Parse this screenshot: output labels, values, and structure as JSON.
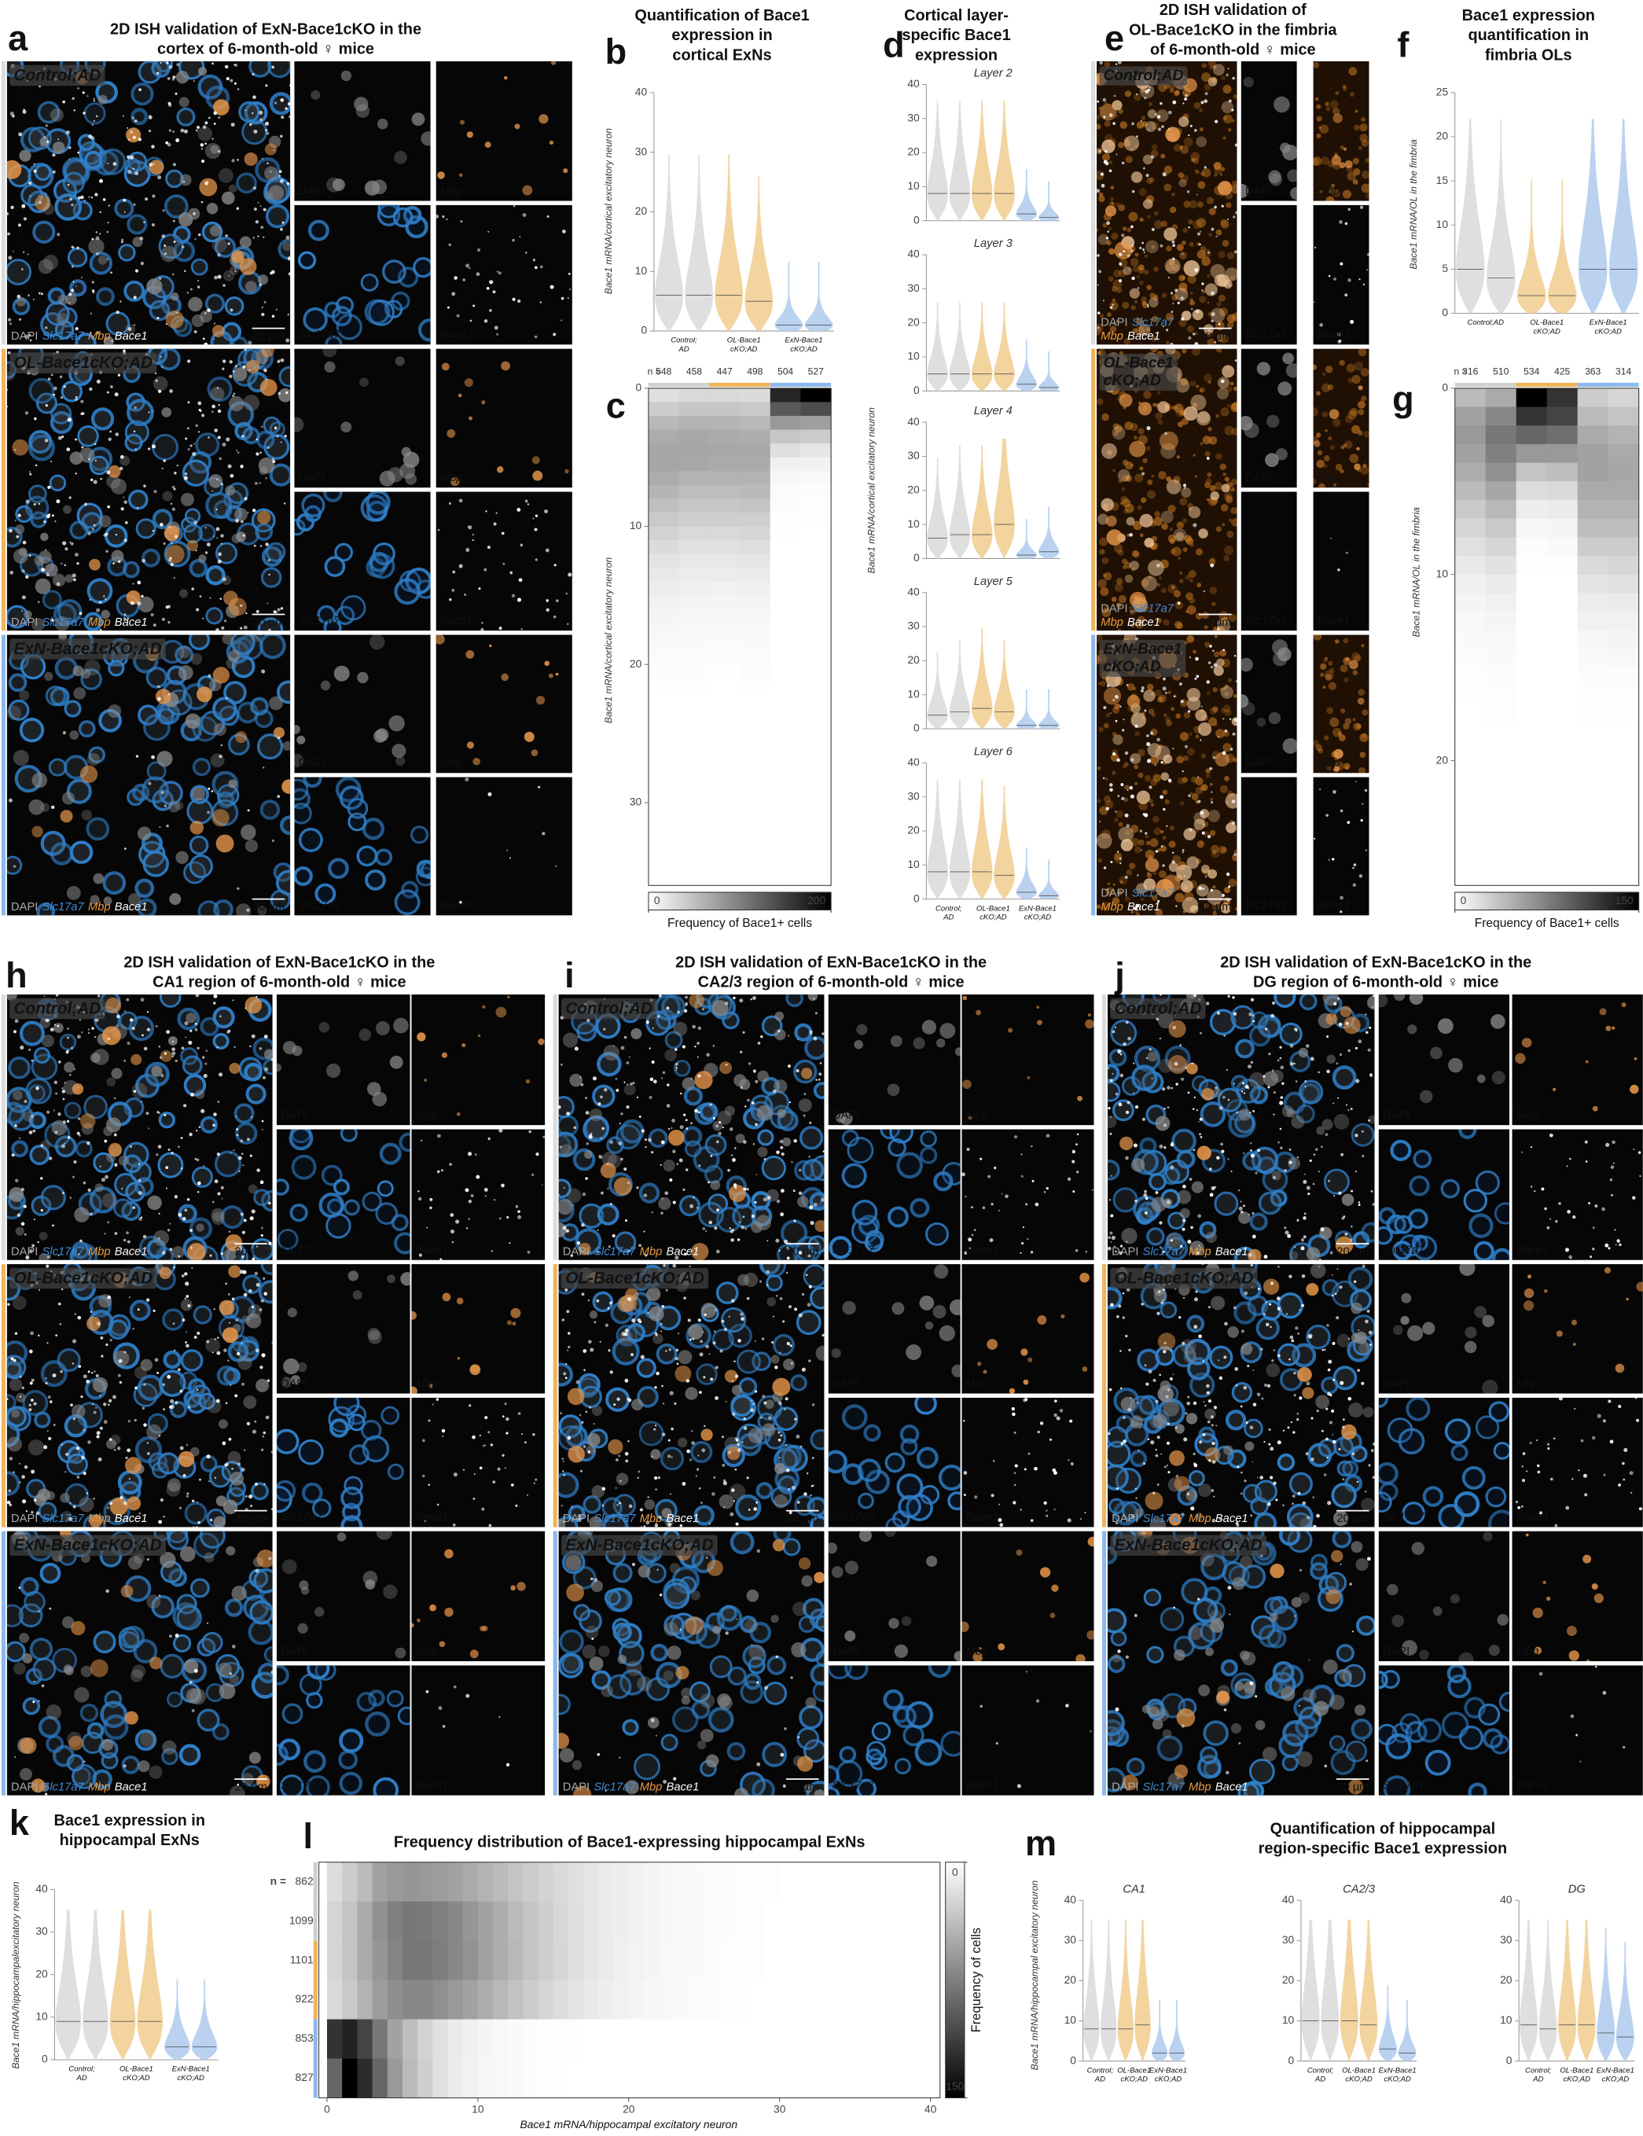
{
  "images": [
    {
      "letter": "a",
      "title": [
        "2D ISH validation of ExN-Bace1cKO in the",
        "cortex of 6-month-old ♀ mice"
      ],
      "groups": [
        [
          "Control;AD"
        ],
        [
          "OL-Bace1cKO;AD"
        ],
        [
          "ExN-Bace1cKO;AD"
        ]
      ],
      "merge": [
        [
          "DAPI",
          "Slc17a7",
          "Mbp",
          "Bace1"
        ]
      ],
      "channels": [
        "DAPI",
        "Mbp",
        "Slc17a7",
        "Bace1"
      ],
      "scale": "20 µm"
    },
    {
      "letter": "e",
      "title": [
        "2D ISH validation of",
        "OL-Bace1cKO in the fimbria",
        "of 6-month-old ♀ mice"
      ],
      "groups": [
        [
          "Control;AD"
        ],
        [
          "OL-Bace1",
          "cKO;AD"
        ],
        [
          "ExN-Bace1",
          "cKO;AD"
        ]
      ],
      "merge": [
        [
          "DAPI",
          "Slc17a7"
        ],
        [
          "Mbp",
          "Bace1"
        ]
      ],
      "channels": [
        "DAPI",
        "Mbp",
        "Slc17a7",
        "Bace1"
      ],
      "scale": "10 µm"
    },
    {
      "letter": "h",
      "title": [
        "2D ISH validation of ExN-Bace1cKO in the",
        "CA1 region of 6-month-old ♀ mice"
      ],
      "groups": [
        [
          "Control;AD"
        ],
        [
          "OL-Bace1cKO;AD"
        ],
        [
          "ExN-Bace1cKO;AD"
        ]
      ],
      "merge": [
        [
          "DAPI",
          "Slc17a7",
          "Mbp",
          "Bace1"
        ]
      ],
      "channels": [
        "DAPI",
        "Mbp",
        "Slc17a7",
        "Bace1"
      ],
      "scale": "20 µm"
    },
    {
      "letter": "i",
      "title": [
        "2D ISH validation of ExN-Bace1cKO in the",
        "CA2/3 region of 6-month-old ♀ mice"
      ],
      "groups": [
        [
          "Control;AD"
        ],
        [
          "OL-Bace1cKO;AD"
        ],
        [
          "ExN-Bace1cKO;AD"
        ]
      ],
      "merge": [
        [
          "DAPI",
          "Slc17a7",
          "Mbp",
          "Bace1"
        ]
      ],
      "channels": [
        "DAPI",
        "Mbp",
        "Slc17a7",
        "Bace1"
      ],
      "scale": "20 µm"
    },
    {
      "letter": "j",
      "title": [
        "2D ISH validation of ExN-Bace1cKO in the",
        "DG region of 6-month-old ♀ mice"
      ],
      "groups": [
        [
          "Control;AD"
        ],
        [
          "OL-Bace1cKO;AD"
        ],
        [
          "ExN-Bace1cKO;AD"
        ]
      ],
      "merge": [
        [
          "DAPI",
          "Slc17a7",
          "Mbp",
          "Bace1"
        ]
      ],
      "channels": [
        "DAPI",
        "Mbp",
        "Slc17a7",
        "Bace1"
      ],
      "scale": "20 µm"
    }
  ],
  "group_colors": [
    "#dcdcdc",
    "#f0b45a",
    "#8db8ea"
  ],
  "channel_colors": [
    "#a8a8a8",
    "#e89a40",
    "#3f8ad4",
    "#ffffff"
  ],
  "chart_data": [
    {
      "type": "violin",
      "letter": "b",
      "title": [
        "Quantification of Bace1",
        "expression in",
        "cortical ExNs"
      ],
      "ylabel": "Bace1 mRNA/cortical excitatory neuron",
      "categories": [
        [
          "Control;",
          "AD"
        ],
        [
          "OL-Bace1",
          "cKO;AD"
        ],
        [
          "ExN-Bace1",
          "cKO;AD"
        ]
      ],
      "colors": [
        "#dcdcdc",
        "#f2cf95",
        "#b3cdee"
      ],
      "label_colors": [
        "#9a9a9a",
        "#d9a441",
        "#7aa6da"
      ],
      "ylim": [
        0,
        40
      ],
      "yticks": [
        0,
        10,
        20,
        30,
        40
      ],
      "facets": [
        {
          "values": [
            [
              6,
              6
            ],
            [
              6,
              5
            ],
            [
              1,
              1
            ]
          ]
        }
      ]
    },
    {
      "type": "heatmap",
      "letter": "c",
      "orientation": "vertical",
      "ylabel": "Bace1 mRNA/cortical excitatory neuron",
      "n_prefix": "n =",
      "n": [
        548,
        458,
        447,
        498,
        504,
        527
      ],
      "colors": [
        "#cfcfcf",
        "#f0b45a",
        "#8db8ea"
      ],
      "cmap": [
        "#ffffff",
        "#000000"
      ],
      "ylim": [
        0,
        36
      ],
      "yticks": [
        0,
        10,
        20,
        30
      ],
      "colorbar": {
        "range": [
          0,
          200
        ],
        "ticks": [
          0,
          200
        ],
        "label": "Frequency of Bace1+ cells"
      },
      "columns": [
        [
          25,
          40,
          55,
          65,
          70,
          70,
          65,
          58,
          50,
          42,
          35,
          28,
          22,
          18,
          14,
          11,
          8,
          6,
          5,
          3,
          2,
          1
        ],
        [
          30,
          45,
          60,
          68,
          70,
          68,
          60,
          52,
          45,
          38,
          30,
          24,
          19,
          15,
          12,
          9,
          7,
          5,
          4,
          3,
          2,
          1
        ],
        [
          30,
          45,
          58,
          66,
          68,
          66,
          60,
          52,
          45,
          38,
          30,
          24,
          19,
          15,
          11,
          8,
          6,
          5,
          3,
          2,
          1,
          0
        ],
        [
          28,
          42,
          55,
          64,
          68,
          66,
          60,
          54,
          46,
          38,
          32,
          26,
          20,
          16,
          12,
          9,
          7,
          5,
          4,
          3,
          2,
          1
        ],
        [
          170,
          130,
          80,
          45,
          25,
          12,
          6,
          3,
          2,
          1,
          1,
          0,
          0,
          0,
          0,
          0,
          0,
          0,
          0,
          0,
          0,
          0
        ],
        [
          200,
          140,
          75,
          40,
          20,
          10,
          5,
          2,
          1,
          1,
          0,
          0,
          0,
          0,
          0,
          0,
          0,
          0,
          0,
          0,
          0,
          0
        ]
      ]
    },
    {
      "type": "violin",
      "letter": "d",
      "title": [
        "Cortical layer-",
        "specific Bace1",
        "expression"
      ],
      "ylabel": "Bace1 mRNA/cortical excitatory neuron",
      "categories": [
        [
          "Control;",
          "AD"
        ],
        [
          "OL-Bace1",
          "cKO;AD"
        ],
        [
          "ExN-Bace1",
          "cKO;AD"
        ]
      ],
      "colors": [
        "#dcdcdc",
        "#f2cf95",
        "#b3cdee"
      ],
      "label_colors": [
        "#9a9a9a",
        "#d9a441",
        "#7aa6da"
      ],
      "ylim": [
        0,
        40
      ],
      "yticks": [
        0,
        10,
        20,
        30,
        40
      ],
      "facets": [
        {
          "title": "Layer 2",
          "values": [
            [
              8,
              8
            ],
            [
              8,
              8
            ],
            [
              2,
              1
            ]
          ]
        },
        {
          "title": "Layer 3",
          "values": [
            [
              5,
              5
            ],
            [
              5,
              5
            ],
            [
              2,
              1
            ]
          ]
        },
        {
          "title": "Layer 4",
          "values": [
            [
              6,
              7
            ],
            [
              7,
              10
            ],
            [
              1,
              2
            ]
          ]
        },
        {
          "title": "Layer 5",
          "values": [
            [
              4,
              5
            ],
            [
              6,
              5
            ],
            [
              1,
              1
            ]
          ]
        },
        {
          "title": "Layer 6",
          "values": [
            [
              8,
              8
            ],
            [
              8,
              7
            ],
            [
              2,
              1
            ]
          ]
        }
      ]
    },
    {
      "type": "violin",
      "letter": "f",
      "title": [
        "Bace1 expression",
        "quantification in",
        "fimbria OLs"
      ],
      "ylabel": "Bace1 mRNA/OL in the fimbria",
      "categories": [
        [
          "Control;AD"
        ],
        [
          "OL-Bace1",
          "cKO;AD"
        ],
        [
          "ExN-Bace1",
          "cKO;AD"
        ]
      ],
      "colors": [
        "#dcdcdc",
        "#f2cf95",
        "#b3cdee"
      ],
      "label_colors": [
        "#9a9a9a",
        "#d9a441",
        "#7aa6da"
      ],
      "ylim": [
        0,
        25
      ],
      "yticks": [
        0,
        5,
        10,
        15,
        20,
        25
      ],
      "facets": [
        {
          "values": [
            [
              5,
              4
            ],
            [
              2,
              2
            ],
            [
              5,
              5
            ]
          ]
        }
      ]
    },
    {
      "type": "heatmap",
      "letter": "g",
      "orientation": "vertical",
      "ylabel": "Bace1 mRNA/OL in the fimbria",
      "n_prefix": "n =",
      "n": [
        316,
        510,
        534,
        425,
        363,
        314
      ],
      "colors": [
        "#cfcfcf",
        "#f0b45a",
        "#8db8ea"
      ],
      "cmap": [
        "#ffffff",
        "#000000"
      ],
      "ylim": [
        0,
        26.7
      ],
      "yticks": [
        0,
        10,
        20
      ],
      "colorbar": {
        "range": [
          0,
          150
        ],
        "ticks": [
          0,
          150
        ],
        "label": "Frequency of Bace1+ cells"
      },
      "columns": [
        [
          40,
          55,
          60,
          55,
          48,
          40,
          32,
          25,
          18,
          13,
          9,
          6,
          4,
          3,
          2,
          1,
          1,
          0,
          0,
          0
        ],
        [
          50,
          70,
          80,
          75,
          65,
          52,
          42,
          32,
          24,
          17,
          12,
          8,
          6,
          4,
          3,
          2,
          1,
          1,
          0,
          0
        ],
        [
          150,
          120,
          90,
          60,
          35,
          20,
          10,
          5,
          2,
          1,
          0,
          0,
          0,
          0,
          0,
          0,
          0,
          0,
          0,
          0
        ],
        [
          120,
          110,
          85,
          60,
          38,
          22,
          12,
          6,
          3,
          1,
          0,
          0,
          0,
          0,
          0,
          0,
          0,
          0,
          0,
          0
        ],
        [
          30,
          40,
          50,
          55,
          55,
          50,
          45,
          38,
          30,
          22,
          16,
          11,
          8,
          5,
          3,
          2,
          1,
          1,
          0,
          0
        ],
        [
          25,
          35,
          45,
          50,
          52,
          50,
          45,
          38,
          30,
          24,
          18,
          12,
          8,
          6,
          4,
          2,
          1,
          1,
          0,
          0
        ]
      ]
    },
    {
      "type": "violin",
      "letter": "k",
      "title": [
        "Bace1 expression in",
        "hippocampal ExNs"
      ],
      "ylabel": "Bace1 mRNA/hippocampalexcitatory neuron",
      "categories": [
        [
          "Control;",
          "AD"
        ],
        [
          "OL-Bace1",
          "cKO;AD"
        ],
        [
          "ExN-Bace1",
          "cKO;AD"
        ]
      ],
      "colors": [
        "#dcdcdc",
        "#f2cf95",
        "#b3cdee"
      ],
      "label_colors": [
        "#9a9a9a",
        "#d9a441",
        "#7aa6da"
      ],
      "ylim": [
        0,
        40
      ],
      "yticks": [
        0,
        10,
        20,
        30,
        40
      ],
      "facets": [
        {
          "values": [
            [
              9,
              9
            ],
            [
              9,
              9
            ],
            [
              3,
              3
            ]
          ]
        }
      ]
    },
    {
      "type": "heatmap",
      "letter": "l",
      "orientation": "horizontal",
      "title": [
        "Frequency distribution of Bace1-expressing hippocampal ExNs"
      ],
      "xlabel": "Bace1 mRNA/hippocampal excitatory neuron",
      "n_prefix": "n =",
      "n": [
        862,
        1099,
        1101,
        922,
        853,
        827
      ],
      "colors": [
        "#cfcfcf",
        "#f0b45a",
        "#8db8ea"
      ],
      "cmap": [
        "#ffffff",
        "#000000"
      ],
      "xlim": [
        0,
        40
      ],
      "xticks": [
        0,
        10,
        20,
        30,
        40
      ],
      "colorbar": {
        "range": [
          0,
          150
        ],
        "ticks": [
          0,
          150
        ],
        "label": "Frequency of cells"
      },
      "rows": [
        [
          20,
          30,
          40,
          55,
          60,
          62,
          60,
          58,
          55,
          50,
          45,
          40,
          35,
          30,
          26,
          22,
          18,
          15,
          12,
          10,
          8,
          6,
          5,
          4,
          3,
          2,
          2,
          1,
          1,
          1,
          0,
          0,
          0,
          0,
          0
        ],
        [
          25,
          35,
          50,
          65,
          75,
          80,
          78,
          75,
          70,
          62,
          55,
          48,
          40,
          34,
          28,
          23,
          19,
          15,
          12,
          10,
          8,
          6,
          5,
          4,
          3,
          2,
          2,
          1,
          1,
          0,
          0,
          0,
          0,
          0,
          0
        ],
        [
          25,
          35,
          50,
          62,
          72,
          80,
          80,
          76,
          70,
          64,
          56,
          48,
          42,
          35,
          29,
          24,
          19,
          15,
          12,
          9,
          7,
          6,
          4,
          3,
          3,
          2,
          1,
          1,
          1,
          0,
          0,
          0,
          0,
          0,
          0
        ],
        [
          22,
          32,
          45,
          58,
          66,
          70,
          70,
          66,
          60,
          55,
          48,
          42,
          36,
          30,
          25,
          20,
          16,
          13,
          10,
          8,
          6,
          5,
          4,
          3,
          2,
          2,
          1,
          1,
          0,
          0,
          0,
          0,
          0,
          0,
          0
        ],
        [
          120,
          130,
          110,
          80,
          55,
          38,
          26,
          18,
          12,
          9,
          6,
          4,
          3,
          2,
          1,
          1,
          1,
          0,
          0,
          0,
          0,
          0,
          0,
          0,
          0,
          0,
          0,
          0,
          0,
          0,
          0,
          0,
          0,
          0,
          0
        ],
        [
          90,
          150,
          125,
          90,
          60,
          40,
          28,
          18,
          12,
          8,
          5,
          4,
          3,
          2,
          1,
          1,
          0,
          0,
          0,
          0,
          0,
          0,
          0,
          0,
          0,
          0,
          0,
          0,
          0,
          0,
          0,
          0,
          0,
          0,
          0
        ]
      ]
    },
    {
      "type": "violin",
      "letter": "m",
      "title": [
        "Quantification of hippocampal",
        "region-specific Bace1 expression"
      ],
      "ylabel": "Bace1 mRNA/hippocampal excitatory neuron",
      "categories": [
        [
          "Control;",
          "AD"
        ],
        [
          "OL-Bace1",
          "cKO;AD"
        ],
        [
          "ExN-Bace1",
          "cKO;AD"
        ]
      ],
      "colors": [
        "#dcdcdc",
        "#f2cf95",
        "#b3cdee"
      ],
      "label_colors": [
        "#9a9a9a",
        "#d9a441",
        "#7aa6da"
      ],
      "ylim": [
        0,
        40
      ],
      "yticks": [
        0,
        10,
        20,
        30,
        40
      ],
      "facets": [
        {
          "title": "CA1",
          "values": [
            [
              8,
              8
            ],
            [
              8,
              9
            ],
            [
              2,
              2
            ]
          ]
        },
        {
          "title": "CA2/3",
          "values": [
            [
              10,
              10
            ],
            [
              10,
              9
            ],
            [
              3,
              2
            ]
          ]
        },
        {
          "title": "DG",
          "values": [
            [
              9,
              8
            ],
            [
              9,
              9
            ],
            [
              7,
              6
            ]
          ]
        }
      ]
    }
  ]
}
